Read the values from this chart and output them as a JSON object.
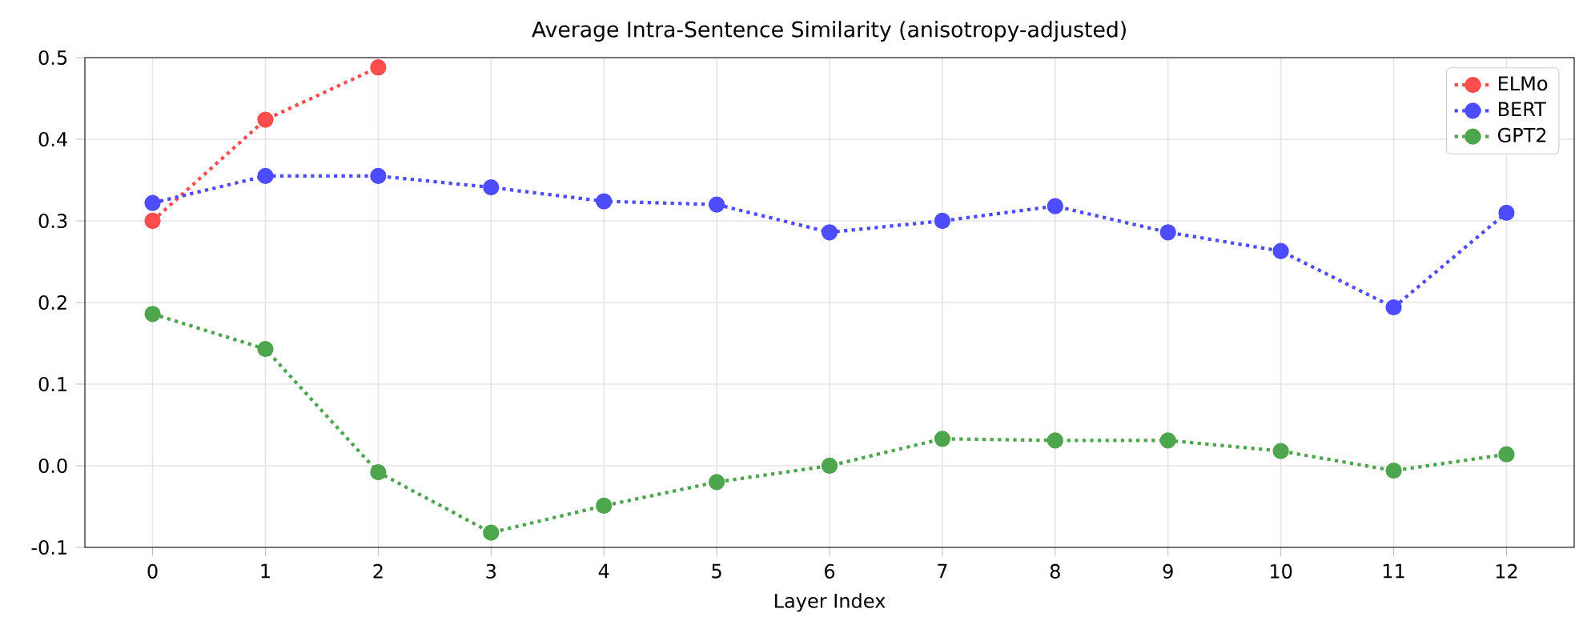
{
  "chart_data": {
    "type": "line",
    "title": "Average Intra-Sentence Similarity (anisotropy-adjusted)",
    "xlabel": "Layer Index",
    "xlim": [
      -0.6,
      12.6
    ],
    "xticks": [
      0,
      1,
      2,
      3,
      4,
      5,
      6,
      7,
      8,
      9,
      10,
      11,
      12
    ],
    "ylim": [
      -0.1,
      0.5
    ],
    "yticks": [
      -0.1,
      {
        "value": 0,
        "label": "0.0"
      },
      0.1,
      0.2,
      0.3,
      0.4,
      0.5
    ],
    "grid": true,
    "legend": "top right",
    "marker": "circle",
    "line_style": "dotted",
    "series": [
      {
        "name": "ELMo",
        "color": "#ff4d4d",
        "x": [
          0,
          1,
          2
        ],
        "values": [
          0.3,
          0.424,
          0.488
        ]
      },
      {
        "name": "BERT",
        "color": "#4d4dff",
        "x": [
          0,
          1,
          2,
          3,
          4,
          5,
          6,
          7,
          8,
          9,
          10,
          11,
          12
        ],
        "values": [
          0.322,
          0.355,
          0.355,
          0.341,
          0.324,
          0.32,
          0.286,
          0.3,
          0.318,
          0.286,
          0.263,
          0.194,
          0.31
        ]
      },
      {
        "name": "GPT2",
        "color": "#4da64d",
        "x": [
          0,
          1,
          2,
          3,
          4,
          5,
          6,
          7,
          8,
          9,
          10,
          11,
          12
        ],
        "values": [
          0.186,
          0.143,
          -0.008,
          -0.082,
          -0.049,
          -0.02,
          0.0,
          0.033,
          0.031,
          0.031,
          0.018,
          -0.006,
          0.014
        ]
      }
    ]
  }
}
